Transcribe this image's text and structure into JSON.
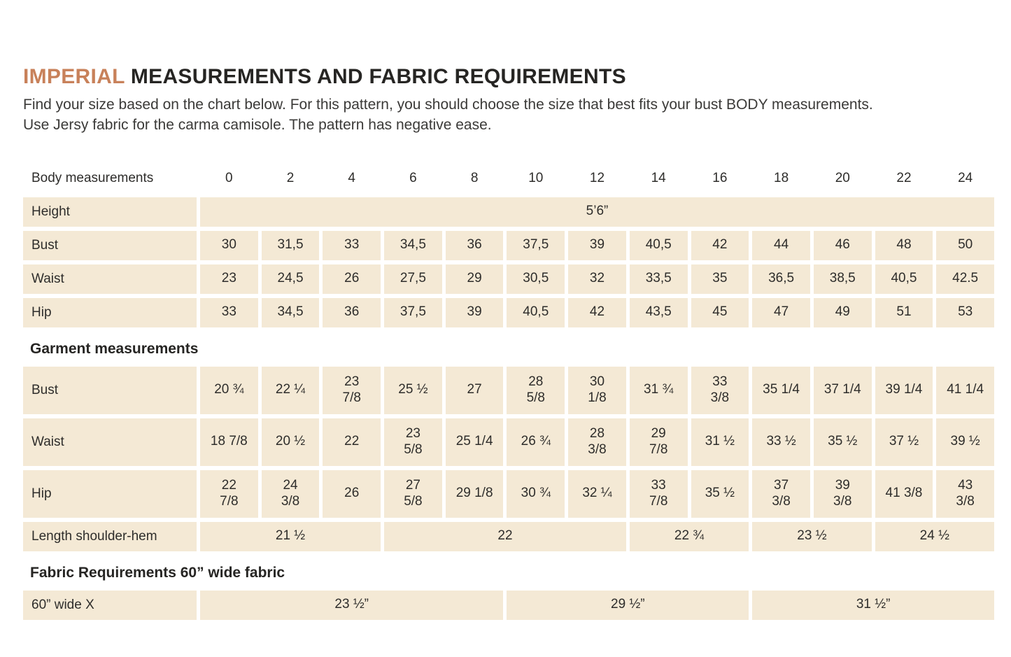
{
  "header": {
    "title_accent": "IMPERIAL",
    "title_rest": " MEASUREMENTS AND FABRIC REQUIREMENTS",
    "subtitle_line1": "Find your size based on the chart below. For this pattern, you should choose the size that best fits your bust BODY measurements.",
    "subtitle_line2": "Use Jersy fabric for the carma camisole. The pattern has negative ease."
  },
  "colors": {
    "accent": "#c8815a",
    "cell_bg": "#f4e9d5",
    "text": "#2e2d2b"
  },
  "table": {
    "header": {
      "label": "Body measurements",
      "sizes": [
        "0",
        "2",
        "4",
        "6",
        "8",
        "10",
        "12",
        "14",
        "16",
        "18",
        "20",
        "22",
        "24"
      ]
    },
    "sections": [
      {
        "title": "",
        "rows": [
          {
            "label": "Height",
            "tall": false,
            "cells": [
              {
                "v": "5’6”",
                "span": 13
              }
            ]
          },
          {
            "label": "Bust",
            "tall": false,
            "cells": [
              "30",
              "31,5",
              "33",
              "34,5",
              "36",
              "37,5",
              "39",
              "40,5",
              "42",
              "44",
              "46",
              "48",
              "50"
            ]
          },
          {
            "label": "Waist",
            "tall": false,
            "cells": [
              "23",
              "24,5",
              "26",
              "27,5",
              "29",
              "30,5",
              "32",
              "33,5",
              "35",
              "36,5",
              "38,5",
              "40,5",
              "42.5"
            ]
          },
          {
            "label": "Hip",
            "tall": false,
            "cells": [
              "33",
              "34,5",
              "36",
              "37,5",
              "39",
              "40,5",
              "42",
              "43,5",
              "45",
              "47",
              "49",
              "51",
              "53"
            ]
          }
        ]
      },
      {
        "title": "Garment measurements",
        "rows": [
          {
            "label": "Bust",
            "tall": true,
            "cells": [
              "20 ¾",
              "22 ¼",
              "23\n7/8",
              "25 ½",
              "27",
              "28\n5/8",
              "30\n1/8",
              "31 ¾",
              "33\n3/8",
              "35 1/4",
              "37 1/4",
              "39 1/4",
              "41 1/4"
            ]
          },
          {
            "label": "Waist",
            "tall": true,
            "cells": [
              "18 7/8",
              "20 ½",
              "22",
              "23\n5/8",
              "25 1/4",
              "26 ¾",
              "28\n3/8",
              "29\n7/8",
              "31 ½",
              "33 ½",
              "35 ½",
              "37 ½",
              "39 ½"
            ]
          },
          {
            "label": "Hip",
            "tall": true,
            "cells": [
              "22\n7/8",
              "24\n3/8",
              "26",
              "27\n5/8",
              "29 1/8",
              "30 ¾",
              "32 ¼",
              "33\n7/8",
              "35 ½",
              "37\n3/8",
              "39\n3/8",
              "41 3/8",
              "43\n3/8"
            ]
          },
          {
            "label": "Length shoulder-hem",
            "tall": false,
            "cells": [
              {
                "v": "21 ½",
                "span": 3
              },
              {
                "v": "22",
                "span": 4
              },
              {
                "v": "22 ¾",
                "span": 2
              },
              {
                "v": "23 ½",
                "span": 2
              },
              {
                "v": "24 ½",
                "span": 2
              }
            ]
          }
        ]
      },
      {
        "title": "Fabric Requirements 60” wide fabric",
        "rows": [
          {
            "label": "60” wide X",
            "tall": false,
            "cells": [
              {
                "v": "23 ½”",
                "span": 5
              },
              {
                "v": "29 ½”",
                "span": 4
              },
              {
                "v": "31 ½”",
                "span": 4
              }
            ]
          }
        ]
      }
    ]
  }
}
